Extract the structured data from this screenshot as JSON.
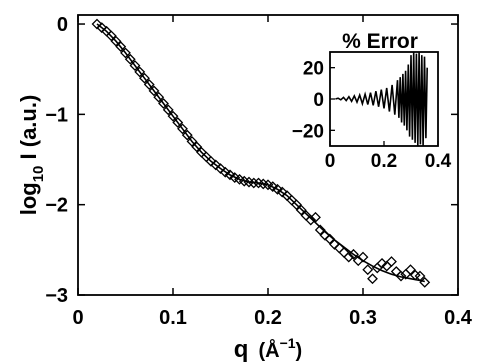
{
  "chart_data": [
    {
      "type": "scatter",
      "title": "",
      "xlabel": {
        "main": "q",
        "unit_open": "(",
        "unit_symbol": "Å",
        "unit_exponent": "−1",
        "unit_close": ")"
      },
      "ylabel": {
        "log": "log",
        "base": "10",
        "rest": " I (a.u.)"
      },
      "xlim": [
        0,
        0.4
      ],
      "ylim": [
        -3,
        0.1
      ],
      "xticks": [
        0,
        0.1,
        0.2,
        0.3,
        0.4
      ],
      "xtick_labels": [
        "0",
        "0.1",
        "0.2",
        "0.3",
        "0.4"
      ],
      "yticks": [
        -3,
        -2,
        -1,
        0
      ],
      "ytick_labels": [
        "−3",
        "−2",
        "−1",
        "0"
      ],
      "grid": false,
      "series": [
        {
          "style": "diamond-markers",
          "x": [
            0.02,
            0.025,
            0.03,
            0.035,
            0.04,
            0.045,
            0.05,
            0.055,
            0.06,
            0.065,
            0.07,
            0.075,
            0.08,
            0.085,
            0.09,
            0.095,
            0.1,
            0.105,
            0.11,
            0.115,
            0.12,
            0.125,
            0.13,
            0.135,
            0.14,
            0.145,
            0.15,
            0.155,
            0.16,
            0.165,
            0.17,
            0.175,
            0.18,
            0.185,
            0.19,
            0.195,
            0.2,
            0.205,
            0.21,
            0.215,
            0.22,
            0.225,
            0.23,
            0.235,
            0.24,
            0.245,
            0.25,
            0.255,
            0.26,
            0.265,
            0.27,
            0.275,
            0.28,
            0.285,
            0.29,
            0.295,
            0.3,
            0.305,
            0.31,
            0.315,
            0.32,
            0.325,
            0.33,
            0.335,
            0.34,
            0.345,
            0.35,
            0.355,
            0.36,
            0.365
          ],
          "y": [
            0,
            -0.04,
            -0.08,
            -0.13,
            -0.19,
            -0.25,
            -0.32,
            -0.39,
            -0.46,
            -0.53,
            -0.6,
            -0.67,
            -0.74,
            -0.81,
            -0.88,
            -0.95,
            -1.02,
            -1.09,
            -1.16,
            -1.23,
            -1.3,
            -1.36,
            -1.42,
            -1.47,
            -1.52,
            -1.56,
            -1.6,
            -1.64,
            -1.67,
            -1.7,
            -1.72,
            -1.74,
            -1.75,
            -1.76,
            -1.76,
            -1.77,
            -1.78,
            -1.8,
            -1.83,
            -1.86,
            -1.9,
            -1.95,
            -2.0,
            -2.06,
            -2.12,
            -2.17,
            -2.14,
            -2.28,
            -2.34,
            -2.38,
            -2.44,
            -2.48,
            -2.53,
            -2.58,
            -2.55,
            -2.62,
            -2.58,
            -2.72,
            -2.82,
            -2.7,
            -2.65,
            -2.68,
            -2.63,
            -2.74,
            -2.79,
            -2.77,
            -2.72,
            -2.78,
            -2.79,
            -2.86
          ]
        },
        {
          "style": "solid-line",
          "x": [
            0.02,
            0.03,
            0.04,
            0.05,
            0.06,
            0.07,
            0.08,
            0.09,
            0.1,
            0.11,
            0.12,
            0.13,
            0.14,
            0.15,
            0.16,
            0.17,
            0.18,
            0.19,
            0.2,
            0.21,
            0.22,
            0.23,
            0.24,
            0.25,
            0.26,
            0.27,
            0.28,
            0.29,
            0.3,
            0.31,
            0.32,
            0.33,
            0.34,
            0.35,
            0.36,
            0.365
          ],
          "y": [
            0,
            -0.08,
            -0.19,
            -0.32,
            -0.46,
            -0.6,
            -0.74,
            -0.88,
            -1.02,
            -1.16,
            -1.3,
            -1.42,
            -1.52,
            -1.6,
            -1.67,
            -1.72,
            -1.75,
            -1.76,
            -1.78,
            -1.83,
            -1.9,
            -2.0,
            -2.1,
            -2.2,
            -2.3,
            -2.39,
            -2.47,
            -2.55,
            -2.62,
            -2.68,
            -2.73,
            -2.77,
            -2.8,
            -2.82,
            -2.84,
            -2.85
          ]
        }
      ]
    },
    {
      "type": "line",
      "title": "% Error",
      "xlim": [
        0,
        0.4
      ],
      "ylim": [
        -30,
        30
      ],
      "xticks": [
        0,
        0.2,
        0.4
      ],
      "xtick_labels": [
        "0",
        "0.2",
        "0.4"
      ],
      "yticks": [
        -20,
        0,
        20
      ],
      "ytick_labels": [
        "−20",
        "0",
        "20"
      ],
      "series": [
        {
          "style": "solid-line",
          "x": [
            0.02,
            0.03,
            0.04,
            0.05,
            0.06,
            0.07,
            0.08,
            0.09,
            0.1,
            0.11,
            0.12,
            0.13,
            0.14,
            0.15,
            0.16,
            0.17,
            0.18,
            0.19,
            0.2,
            0.21,
            0.22,
            0.23,
            0.24,
            0.25,
            0.255,
            0.26,
            0.265,
            0.27,
            0.275,
            0.28,
            0.285,
            0.29,
            0.295,
            0.3,
            0.305,
            0.31,
            0.315,
            0.32,
            0.325,
            0.33,
            0.335,
            0.34,
            0.345,
            0.35,
            0.355,
            0.36
          ],
          "y": [
            0,
            0.5,
            -0.5,
            1,
            -1,
            1.5,
            -1.5,
            2,
            -2,
            2.5,
            -3,
            3,
            -3.5,
            4,
            -4,
            5,
            -5,
            6,
            -6,
            7,
            -8,
            9,
            -10,
            12,
            -12,
            14,
            -15,
            16,
            -17,
            18,
            -20,
            22,
            -24,
            28,
            -26,
            30,
            -28,
            29,
            -30,
            30,
            -29,
            28,
            -30,
            27,
            -25,
            20
          ]
        }
      ]
    }
  ]
}
